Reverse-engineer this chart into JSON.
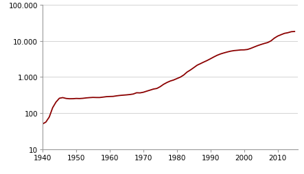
{
  "years": [
    1940,
    1941,
    1942,
    1943,
    1944,
    1945,
    1946,
    1947,
    1948,
    1949,
    1950,
    1951,
    1952,
    1953,
    1954,
    1955,
    1956,
    1957,
    1958,
    1959,
    1960,
    1961,
    1962,
    1963,
    1964,
    1965,
    1966,
    1967,
    1968,
    1969,
    1970,
    1971,
    1972,
    1973,
    1974,
    1975,
    1976,
    1977,
    1978,
    1979,
    1980,
    1981,
    1982,
    1983,
    1984,
    1985,
    1986,
    1987,
    1988,
    1989,
    1990,
    1991,
    1992,
    1993,
    1994,
    1995,
    1996,
    1997,
    1998,
    1999,
    2000,
    2001,
    2002,
    2003,
    2004,
    2005,
    2006,
    2007,
    2008,
    2009,
    2010,
    2011,
    2012,
    2013,
    2014,
    2015
  ],
  "debt": [
    50.7,
    57.5,
    79.2,
    142.6,
    204.1,
    260.1,
    271.0,
    257.1,
    252.0,
    252.6,
    256.9,
    255.3,
    259.1,
    266.0,
    270.8,
    274.4,
    272.7,
    272.4,
    279.7,
    287.5,
    290.9,
    292.9,
    302.9,
    310.8,
    316.8,
    322.3,
    329.5,
    340.4,
    368.7,
    365.8,
    380.9,
    408.2,
    435.9,
    466.3,
    483.9,
    541.9,
    629.0,
    706.4,
    776.6,
    829.5,
    909.1,
    994.8,
    1137.3,
    1371.7,
    1564.7,
    1817.5,
    2120.6,
    2346.1,
    2601.3,
    2868.0,
    3206.6,
    3598.5,
    4001.8,
    4351.4,
    4643.7,
    4921.0,
    5181.9,
    5369.2,
    5478.7,
    5606.1,
    5628.7,
    5769.9,
    6198.4,
    6760.0,
    7354.7,
    7905.3,
    8451.4,
    8950.7,
    9986.1,
    11875.9,
    13528.8,
    14764.2,
    16050.9,
    16719.4,
    17794.5,
    18120.1
  ],
  "line_color": "#8B0000",
  "line_width": 1.3,
  "bg_color": "#ffffff",
  "grid_color": "#cccccc",
  "yticks": [
    10,
    100,
    1000,
    10000,
    100000
  ],
  "ytick_labels": [
    "10",
    "100",
    "1.000",
    "10.000",
    "100.000"
  ],
  "xticks": [
    1940,
    1950,
    1960,
    1970,
    1980,
    1990,
    2000,
    2010
  ],
  "ylim": [
    10,
    100000
  ],
  "xlim": [
    1940,
    2016
  ],
  "tick_fontsize": 7.5,
  "spine_color": "#999999"
}
